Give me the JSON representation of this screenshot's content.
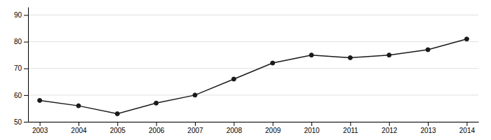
{
  "chart_data": {
    "type": "line",
    "x": [
      2003,
      2004,
      2005,
      2006,
      2007,
      2008,
      2009,
      2010,
      2011,
      2012,
      2013,
      2014
    ],
    "values": [
      58,
      56,
      53,
      57,
      60,
      66,
      72,
      75,
      74,
      75,
      77,
      81
    ],
    "xlim": [
      2002.7,
      2014.3
    ],
    "xticks": [
      2003,
      2004,
      2005,
      2006,
      2007,
      2008,
      2009,
      2010,
      2011,
      2012,
      2013,
      2014
    ],
    "ylim": [
      50,
      93
    ],
    "yticks": [
      50,
      60,
      70,
      80,
      90
    ],
    "color": "#1a1a1a",
    "marker": "circle",
    "grid": true
  }
}
